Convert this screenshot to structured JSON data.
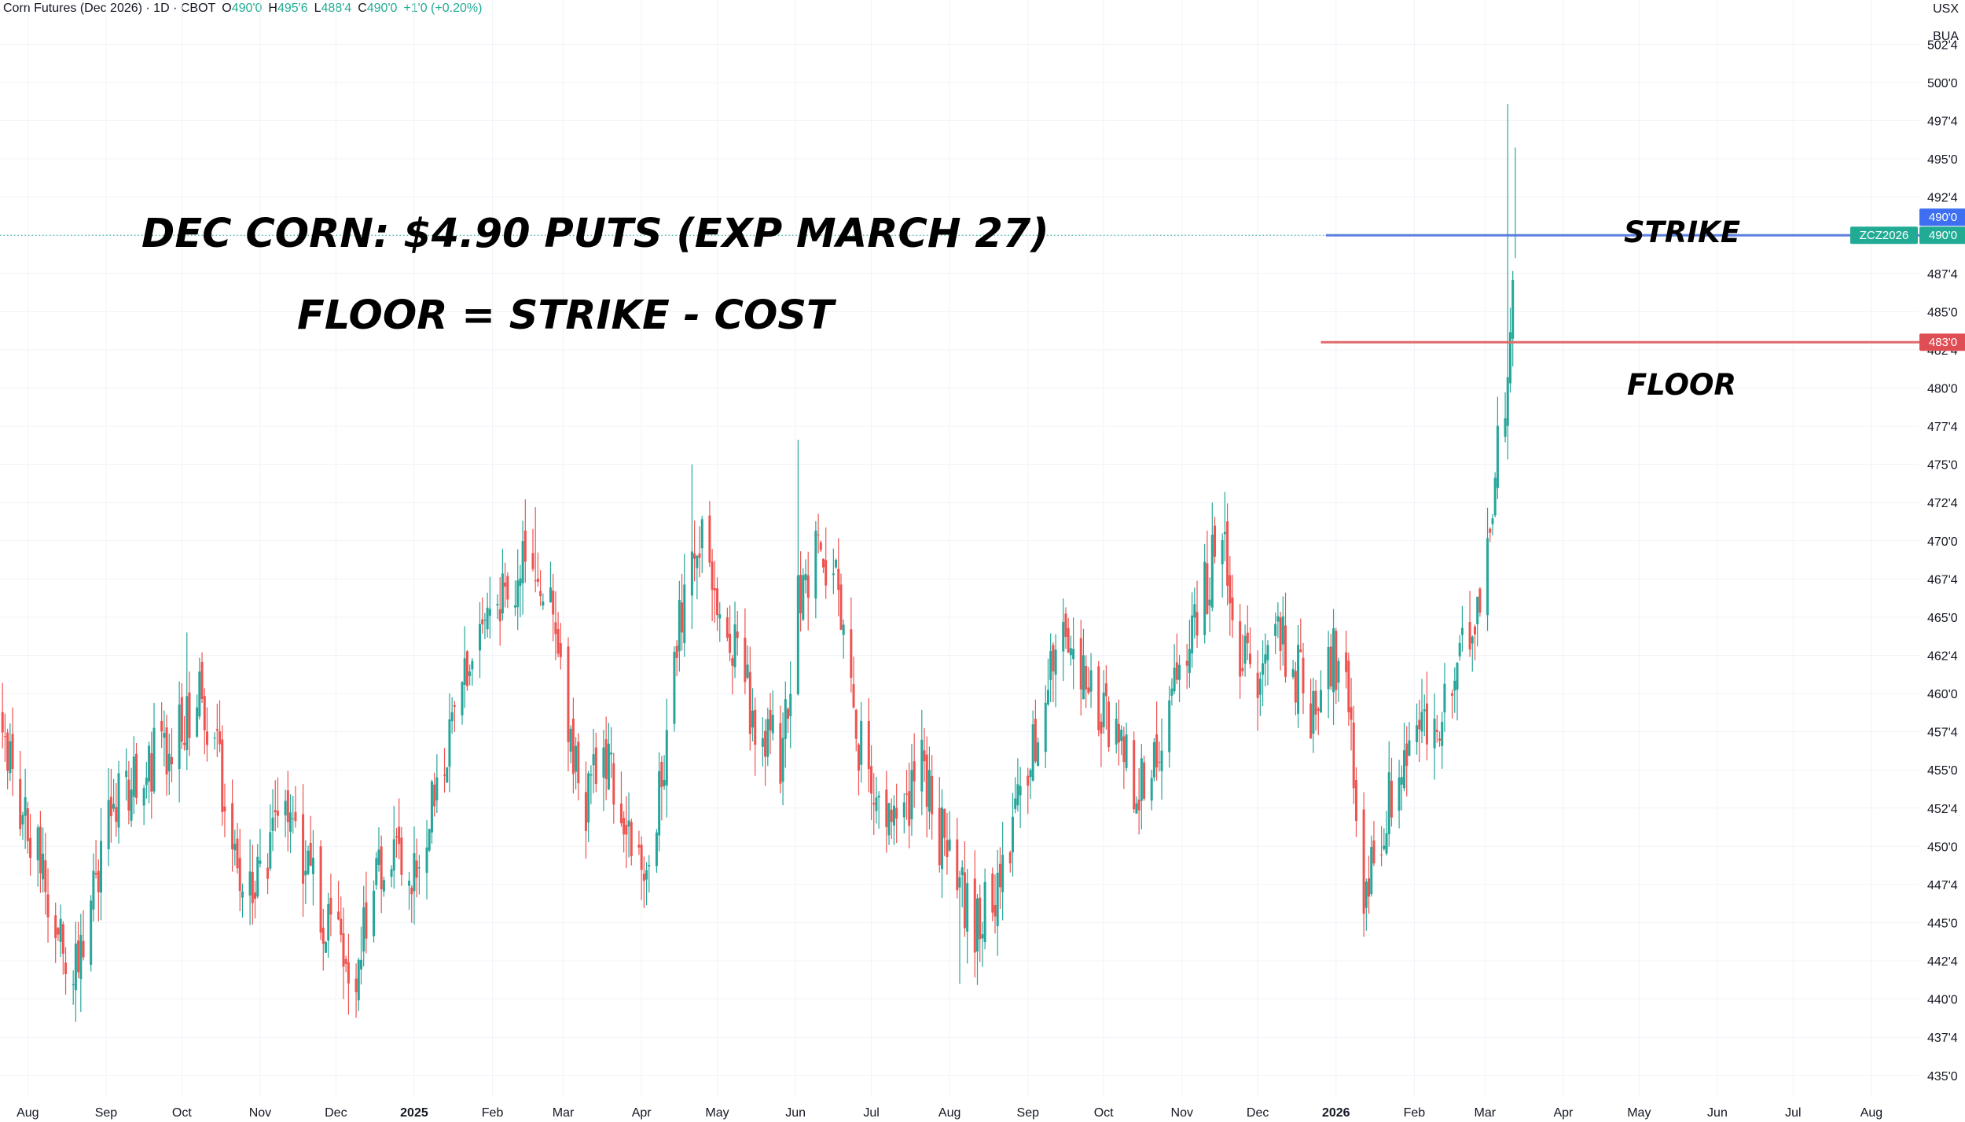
{
  "header": {
    "symbol": "Corn Futures (Dec 2026) · 1D · CBOT",
    "open_label": "O",
    "open": "490'0",
    "high_label": "H",
    "high": "495'6",
    "low_label": "L",
    "low": "488'4",
    "close_label": "C",
    "close": "490'0",
    "change": "+1'0 (+0.20%)"
  },
  "units": {
    "currency": "USX",
    "unit": "BUA"
  },
  "annotations": {
    "title": "DEC CORN: $4.90 PUTS (EXP MARCH 27)",
    "formula": "FLOOR = STRIKE - COST",
    "strike_label": "STRIKE",
    "floor_label": "FLOOR"
  },
  "price_tags": {
    "strike": "490'0",
    "last_symbol": "ZCZ2026",
    "last": "490'0",
    "floor": "483'0"
  },
  "colors": {
    "up": "#26a69a",
    "down": "#ef5350",
    "strike_line": "#5b7fe0",
    "floor_line": "#e06a6a",
    "strike_tag": "#3d6ff0",
    "floor_tag": "#e04e55",
    "last_tag": "#22ab94"
  },
  "chart_data": {
    "type": "candlestick",
    "title": "Corn Futures (Dec 2026) · 1D · CBOT",
    "y_ticks": [
      "502'4",
      "500'0",
      "497'4",
      "495'0",
      "492'4",
      "490'0",
      "487'4",
      "485'0",
      "482'4",
      "480'0",
      "477'4",
      "475'0",
      "472'4",
      "470'0",
      "467'4",
      "465'0",
      "462'4",
      "460'0",
      "457'4",
      "455'0",
      "452'4",
      "450'0",
      "447'4",
      "445'0",
      "442'4",
      "440'0",
      "437'4",
      "435'0"
    ],
    "y_tick_values": [
      502.5,
      500,
      497.5,
      495,
      492.5,
      490,
      487.5,
      485,
      482.5,
      480,
      477.5,
      475,
      472.5,
      470,
      467.5,
      465,
      462.5,
      460,
      457.5,
      455,
      452.5,
      450,
      447.5,
      445,
      442.5,
      440,
      437.5,
      435
    ],
    "ylim": [
      433.6,
      505.4
    ],
    "x_ticks": [
      {
        "label": "Aug",
        "date": "2024-08-01"
      },
      {
        "label": "Sep",
        "date": "2024-09-01"
      },
      {
        "label": "Oct",
        "date": "2024-10-01"
      },
      {
        "label": "Nov",
        "date": "2024-11-01"
      },
      {
        "label": "Dec",
        "date": "2024-12-01"
      },
      {
        "label": "2025",
        "date": "2025-01-01",
        "bold": true
      },
      {
        "label": "Feb",
        "date": "2025-02-01"
      },
      {
        "label": "Mar",
        "date": "2025-03-01"
      },
      {
        "label": "Apr",
        "date": "2025-04-01"
      },
      {
        "label": "May",
        "date": "2025-05-01"
      },
      {
        "label": "Jun",
        "date": "2025-06-01"
      },
      {
        "label": "Jul",
        "date": "2025-07-01"
      },
      {
        "label": "Aug",
        "date": "2025-08-01"
      },
      {
        "label": "Sep",
        "date": "2025-09-01"
      },
      {
        "label": "Oct",
        "date": "2025-10-01"
      },
      {
        "label": "Nov",
        "date": "2025-11-01"
      },
      {
        "label": "Dec",
        "date": "2025-12-01"
      },
      {
        "label": "2026",
        "date": "2026-01-01",
        "bold": true
      },
      {
        "label": "Feb",
        "date": "2026-02-01"
      },
      {
        "label": "Mar",
        "date": "2026-03-01"
      },
      {
        "label": "Apr",
        "date": "2026-04-01"
      },
      {
        "label": "May",
        "date": "2026-05-01"
      },
      {
        "label": "Jun",
        "date": "2026-06-01"
      },
      {
        "label": "Jul",
        "date": "2026-07-01"
      },
      {
        "label": "Aug",
        "date": "2026-08-01"
      }
    ],
    "xlim": [
      "2024-07-21",
      "2026-08-20"
    ],
    "strike": 490,
    "floor": 483,
    "last_close": 490,
    "horizontal_lines": [
      {
        "name": "STRIKE",
        "value": 490,
        "from": "2025-12-28"
      },
      {
        "name": "FLOOR",
        "value": 483,
        "from": "2025-12-26"
      }
    ],
    "closes": [
      {
        "date": "2024-07-22",
        "close": 459
      },
      {
        "date": "2024-07-29",
        "close": 452
      },
      {
        "date": "2024-08-05",
        "close": 449
      },
      {
        "date": "2024-08-12",
        "close": 445
      },
      {
        "date": "2024-08-19",
        "close": 442
      },
      {
        "date": "2024-08-26",
        "close": 446
      },
      {
        "date": "2024-09-02",
        "close": 451
      },
      {
        "date": "2024-09-09",
        "close": 454
      },
      {
        "date": "2024-09-16",
        "close": 455
      },
      {
        "date": "2024-09-23",
        "close": 456
      },
      {
        "date": "2024-09-30",
        "close": 458
      },
      {
        "date": "2024-10-07",
        "close": 460
      },
      {
        "date": "2024-10-14",
        "close": 457
      },
      {
        "date": "2024-10-21",
        "close": 449
      },
      {
        "date": "2024-10-28",
        "close": 447
      },
      {
        "date": "2024-11-04",
        "close": 450
      },
      {
        "date": "2024-11-11",
        "close": 454
      },
      {
        "date": "2024-11-18",
        "close": 449
      },
      {
        "date": "2024-11-25",
        "close": 446
      },
      {
        "date": "2024-12-02",
        "close": 443
      },
      {
        "date": "2024-12-09",
        "close": 442
      },
      {
        "date": "2024-12-16",
        "close": 447
      },
      {
        "date": "2024-12-23",
        "close": 449
      },
      {
        "date": "2024-12-30",
        "close": 447
      },
      {
        "date": "2025-01-06",
        "close": 452
      },
      {
        "date": "2025-01-13",
        "close": 456
      },
      {
        "date": "2025-01-20",
        "close": 461
      },
      {
        "date": "2025-01-27",
        "close": 464
      },
      {
        "date": "2025-02-03",
        "close": 466
      },
      {
        "date": "2025-02-10",
        "close": 468
      },
      {
        "date": "2025-02-17",
        "close": 470
      },
      {
        "date": "2025-02-24",
        "close": 465
      },
      {
        "date": "2025-03-03",
        "close": 458
      },
      {
        "date": "2025-03-10",
        "close": 453
      },
      {
        "date": "2025-03-17",
        "close": 456
      },
      {
        "date": "2025-03-24",
        "close": 453
      },
      {
        "date": "2025-03-31",
        "close": 448
      },
      {
        "date": "2025-04-07",
        "close": 452
      },
      {
        "date": "2025-04-14",
        "close": 462
      },
      {
        "date": "2025-04-21",
        "close": 471
      },
      {
        "date": "2025-04-28",
        "close": 468
      },
      {
        "date": "2025-05-05",
        "close": 464
      },
      {
        "date": "2025-05-12",
        "close": 460
      },
      {
        "date": "2025-05-19",
        "close": 458
      },
      {
        "date": "2025-05-26",
        "close": 456
      },
      {
        "date": "2025-06-02",
        "close": 466
      },
      {
        "date": "2025-06-09",
        "close": 470
      },
      {
        "date": "2025-06-16",
        "close": 468
      },
      {
        "date": "2025-06-23",
        "close": 459
      },
      {
        "date": "2025-06-30",
        "close": 454
      },
      {
        "date": "2025-07-07",
        "close": 451
      },
      {
        "date": "2025-07-14",
        "close": 453
      },
      {
        "date": "2025-07-21",
        "close": 455
      },
      {
        "date": "2025-07-28",
        "close": 451
      },
      {
        "date": "2025-08-04",
        "close": 447
      },
      {
        "date": "2025-08-11",
        "close": 445
      },
      {
        "date": "2025-08-18",
        "close": 447
      },
      {
        "date": "2025-08-25",
        "close": 451
      },
      {
        "date": "2025-09-01",
        "close": 455
      },
      {
        "date": "2025-09-08",
        "close": 459
      },
      {
        "date": "2025-09-15",
        "close": 465
      },
      {
        "date": "2025-09-22",
        "close": 462
      },
      {
        "date": "2025-09-29",
        "close": 459
      },
      {
        "date": "2025-10-06",
        "close": 457
      },
      {
        "date": "2025-10-13",
        "close": 454
      },
      {
        "date": "2025-10-20",
        "close": 456
      },
      {
        "date": "2025-10-27",
        "close": 459
      },
      {
        "date": "2025-11-03",
        "close": 463
      },
      {
        "date": "2025-11-10",
        "close": 467
      },
      {
        "date": "2025-11-17",
        "close": 470
      },
      {
        "date": "2025-11-24",
        "close": 463
      },
      {
        "date": "2025-12-01",
        "close": 460
      },
      {
        "date": "2025-12-08",
        "close": 465
      },
      {
        "date": "2025-12-15",
        "close": 462
      },
      {
        "date": "2025-12-22",
        "close": 459
      },
      {
        "date": "2025-12-29",
        "close": 463
      },
      {
        "date": "2026-01-05",
        "close": 460
      },
      {
        "date": "2026-01-12",
        "close": 447
      },
      {
        "date": "2026-01-19",
        "close": 451
      },
      {
        "date": "2026-01-26",
        "close": 455
      },
      {
        "date": "2026-02-02",
        "close": 458
      },
      {
        "date": "2026-02-09",
        "close": 457
      },
      {
        "date": "2026-02-16",
        "close": 460
      },
      {
        "date": "2026-02-23",
        "close": 464
      },
      {
        "date": "2026-03-02",
        "close": 470
      },
      {
        "date": "2026-03-09",
        "close": 480
      },
      {
        "date": "2026-03-13",
        "close": 490
      }
    ],
    "extremes": [
      {
        "date": "2024-08-25",
        "low": 438.8
      },
      {
        "date": "2024-10-03",
        "high": 464
      },
      {
        "date": "2024-12-04",
        "low": 440.2
      },
      {
        "date": "2025-02-18",
        "high": 472.2
      },
      {
        "date": "2025-04-21",
        "high": 475
      },
      {
        "date": "2025-06-02",
        "high": 476.6
      },
      {
        "date": "2025-08-05",
        "low": 441
      },
      {
        "date": "2025-11-18",
        "high": 473.2
      },
      {
        "date": "2026-01-12",
        "low": 445.6
      },
      {
        "date": "2026-03-10",
        "high": 498.6
      },
      {
        "date": "2026-03-13",
        "high": 495.75,
        "low": 488.5
      }
    ]
  }
}
